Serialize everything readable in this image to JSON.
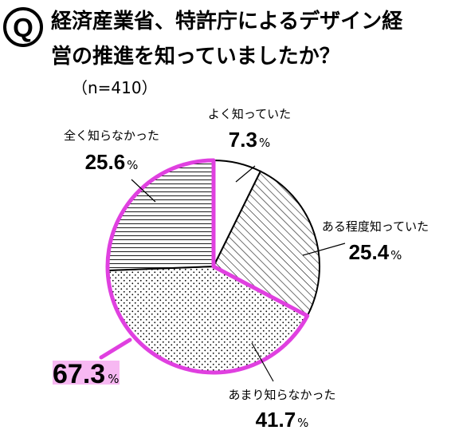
{
  "header": {
    "q_mark": "Q",
    "title_line1": "経済産業省、特許庁によるデザイン経",
    "title_line2": "営の推進を知っていましたか？",
    "sample_size": "（n=410）"
  },
  "highlight": {
    "value": "67.3",
    "unit": "%",
    "color": "#e040e0",
    "marker_color": "#f7b8f2"
  },
  "chart_data": {
    "type": "pie",
    "start": "12 o'clock",
    "direction": "clockwise",
    "slices": [
      {
        "label": "よく知っていた",
        "value": 7.3,
        "unit": "%",
        "pattern": "blank"
      },
      {
        "label": "ある程度知っていた",
        "value": 25.4,
        "unit": "%",
        "pattern": "diagonal-hatch"
      },
      {
        "label": "あまり知らなかった",
        "value": 41.7,
        "unit": "%",
        "pattern": "dots"
      },
      {
        "label": "全く知らなかった",
        "value": 25.6,
        "unit": "%",
        "pattern": "horizontal-lines"
      }
    ]
  }
}
